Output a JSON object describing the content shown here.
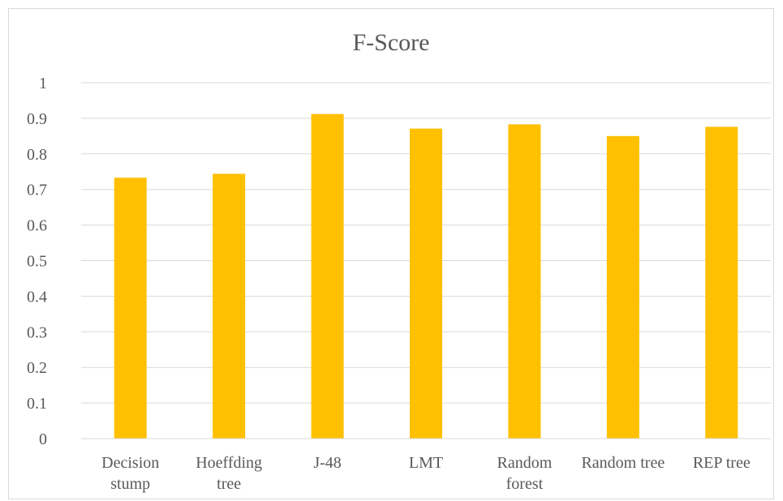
{
  "chart_data": {
    "type": "bar",
    "title": "F-Score",
    "xlabel": "",
    "ylabel": "",
    "categories": [
      [
        "Decision",
        "stump"
      ],
      [
        "Hoeffding",
        "tree"
      ],
      [
        "J-48"
      ],
      [
        "LMT"
      ],
      [
        "Random",
        "forest"
      ],
      [
        "Random tree"
      ],
      [
        "REP tree"
      ]
    ],
    "values": [
      0.733,
      0.744,
      0.912,
      0.871,
      0.883,
      0.85,
      0.876
    ],
    "ylim": [
      0,
      1
    ],
    "yticks": [
      "0",
      "0.1",
      "0.2",
      "0.3",
      "0.4",
      "0.5",
      "0.6",
      "0.7",
      "0.8",
      "0.9",
      "1"
    ],
    "grid": true,
    "legend": "none",
    "bar_color": "#FFC000",
    "grid_color": "#d9d9d9"
  }
}
